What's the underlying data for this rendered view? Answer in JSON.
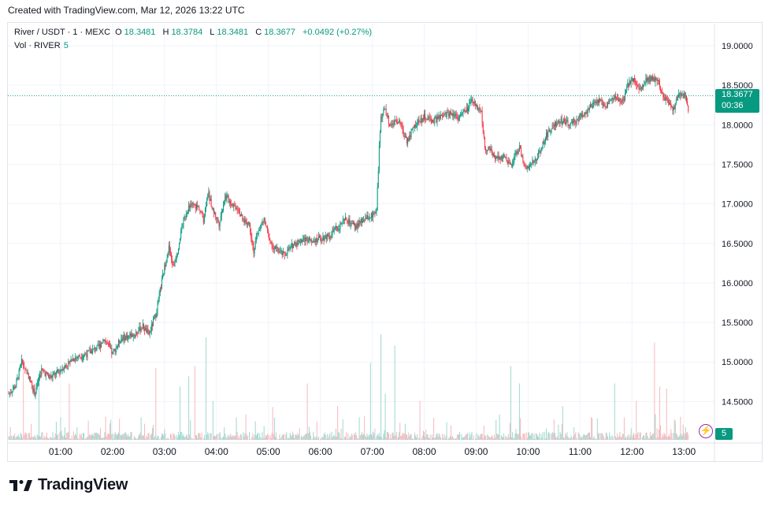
{
  "header": {
    "created": "Created with TradingView.com, Mar 12, 2026 13:22 UTC"
  },
  "legend": {
    "symbol": "River / USDT · 1 · MEXC",
    "o_label": "O",
    "o_value": "18.3481",
    "h_label": "H",
    "h_value": "18.3784",
    "l_label": "L",
    "l_value": "18.3481",
    "c_label": "C",
    "c_value": "18.3677",
    "change": "+0.0492 (+0.27%)",
    "vol_label": "Vol · RIVER",
    "vol_value": "5"
  },
  "price_tag": {
    "price": "18.3677",
    "countdown": "00:36"
  },
  "volume_tag": "5",
  "branding": {
    "logo_text": "TradingView"
  },
  "colors": {
    "up": "#089981",
    "down": "#f23645",
    "up_vol": "#9fd8cf",
    "down_vol": "#f7b8bd",
    "grid": "#f0f3fa"
  },
  "chart_data": {
    "type": "candlestick",
    "title": "River / USDT · 1 · MEXC",
    "ylim": [
      14.1,
      19.3
    ],
    "y_ticks": [
      "19.0000",
      "18.5000",
      "18.0000",
      "17.5000",
      "17.0000",
      "16.5000",
      "16.0000",
      "15.5000",
      "15.0000",
      "14.5000"
    ],
    "y_tick_values": [
      19.0,
      18.5,
      18.0,
      17.5,
      17.0,
      16.5,
      16.0,
      15.5,
      15.0,
      14.5
    ],
    "x_ticks": [
      "01:00",
      "02:00",
      "03:00",
      "04:00",
      "05:00",
      "06:00",
      "07:00",
      "08:00",
      "09:00",
      "10:00",
      "11:00",
      "12:00",
      "13:00"
    ],
    "x_tick_minutes": [
      60,
      120,
      180,
      240,
      300,
      360,
      420,
      480,
      540,
      600,
      660,
      720,
      780
    ],
    "x_range_minutes": [
      0,
      822
    ],
    "last_price": 18.3677,
    "price_path": [
      [
        0,
        14.6
      ],
      [
        8,
        14.7
      ],
      [
        15,
        15.0
      ],
      [
        22,
        14.85
      ],
      [
        30,
        14.6
      ],
      [
        38,
        14.9
      ],
      [
        48,
        14.8
      ],
      [
        60,
        14.9
      ],
      [
        75,
        15.05
      ],
      [
        90,
        15.1
      ],
      [
        105,
        15.2
      ],
      [
        110,
        15.3
      ],
      [
        120,
        15.1
      ],
      [
        130,
        15.3
      ],
      [
        145,
        15.35
      ],
      [
        155,
        15.45
      ],
      [
        162,
        15.35
      ],
      [
        170,
        15.6
      ],
      [
        175,
        15.9
      ],
      [
        180,
        16.2
      ],
      [
        185,
        16.45
      ],
      [
        190,
        16.2
      ],
      [
        195,
        16.4
      ],
      [
        200,
        16.7
      ],
      [
        205,
        16.9
      ],
      [
        210,
        17.0
      ],
      [
        220,
        16.95
      ],
      [
        225,
        16.8
      ],
      [
        230,
        17.15
      ],
      [
        237,
        16.9
      ],
      [
        243,
        16.75
      ],
      [
        250,
        17.1
      ],
      [
        258,
        17.0
      ],
      [
        265,
        16.95
      ],
      [
        270,
        16.8
      ],
      [
        278,
        16.75
      ],
      [
        283,
        16.4
      ],
      [
        288,
        16.65
      ],
      [
        295,
        16.8
      ],
      [
        300,
        16.6
      ],
      [
        305,
        16.45
      ],
      [
        312,
        16.4
      ],
      [
        318,
        16.35
      ],
      [
        330,
        16.5
      ],
      [
        340,
        16.55
      ],
      [
        355,
        16.55
      ],
      [
        370,
        16.6
      ],
      [
        380,
        16.7
      ],
      [
        390,
        16.8
      ],
      [
        400,
        16.7
      ],
      [
        410,
        16.8
      ],
      [
        420,
        16.85
      ],
      [
        425,
        16.95
      ],
      [
        428,
        17.7
      ],
      [
        430,
        18.1
      ],
      [
        435,
        18.2
      ],
      [
        440,
        18.0
      ],
      [
        450,
        18.05
      ],
      [
        460,
        17.8
      ],
      [
        470,
        18.0
      ],
      [
        480,
        18.1
      ],
      [
        490,
        18.05
      ],
      [
        500,
        18.1
      ],
      [
        510,
        18.15
      ],
      [
        520,
        18.1
      ],
      [
        530,
        18.2
      ],
      [
        535,
        18.3
      ],
      [
        540,
        18.25
      ],
      [
        546,
        18.15
      ],
      [
        550,
        17.7
      ],
      [
        555,
        17.7
      ],
      [
        560,
        17.6
      ],
      [
        570,
        17.6
      ],
      [
        580,
        17.5
      ],
      [
        590,
        17.7
      ],
      [
        596,
        17.5
      ],
      [
        600,
        17.45
      ],
      [
        608,
        17.55
      ],
      [
        615,
        17.7
      ],
      [
        620,
        17.85
      ],
      [
        630,
        18.0
      ],
      [
        640,
        18.05
      ],
      [
        650,
        18.0
      ],
      [
        660,
        18.1
      ],
      [
        670,
        18.2
      ],
      [
        680,
        18.3
      ],
      [
        690,
        18.25
      ],
      [
        700,
        18.35
      ],
      [
        710,
        18.3
      ],
      [
        715,
        18.5
      ],
      [
        722,
        18.6
      ],
      [
        728,
        18.45
      ],
      [
        735,
        18.55
      ],
      [
        742,
        18.6
      ],
      [
        750,
        18.55
      ],
      [
        755,
        18.4
      ],
      [
        760,
        18.3
      ],
      [
        768,
        18.2
      ],
      [
        775,
        18.4
      ],
      [
        782,
        18.35
      ],
      [
        785,
        18.2
      ]
    ],
    "volume_spikes": [
      [
        17,
        0.78
      ],
      [
        35,
        0.62
      ],
      [
        70,
        0.55
      ],
      [
        170,
        0.7
      ],
      [
        198,
        0.52
      ],
      [
        208,
        0.62
      ],
      [
        215,
        0.72
      ],
      [
        228,
        1.0
      ],
      [
        236,
        0.38
      ],
      [
        305,
        0.32
      ],
      [
        345,
        0.55
      ],
      [
        380,
        0.33
      ],
      [
        418,
        0.75
      ],
      [
        430,
        1.03
      ],
      [
        435,
        0.45
      ],
      [
        446,
        0.92
      ],
      [
        475,
        0.38
      ],
      [
        580,
        0.72
      ],
      [
        590,
        0.55
      ],
      [
        640,
        0.33
      ],
      [
        700,
        0.55
      ],
      [
        725,
        0.38
      ],
      [
        746,
        0.95
      ],
      [
        752,
        0.52
      ],
      [
        760,
        0.5
      ]
    ]
  }
}
